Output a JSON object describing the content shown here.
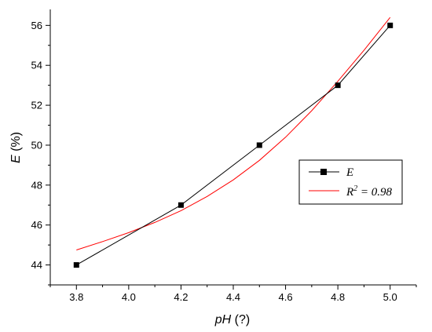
{
  "chart_data": {
    "type": "line",
    "xlabel": {
      "var": "pH",
      "unit": " (?)"
    },
    "ylabel": {
      "var": "E",
      "unit": " (%)"
    },
    "xlim": [
      3.7,
      5.1
    ],
    "ylim": [
      43,
      56.8
    ],
    "xticks": [
      "3.8",
      "4.0",
      "4.2",
      "4.4",
      "4.6",
      "4.8",
      "5.0"
    ],
    "yticks": [
      "44",
      "46",
      "48",
      "50",
      "52",
      "54",
      "56"
    ],
    "grid": false,
    "legend_position": "right-center",
    "colors": {
      "data": "#000000",
      "fit": "#ff0000"
    },
    "series": [
      {
        "name": "E",
        "style": "line-with-square-markers",
        "x": [
          3.8,
          4.2,
          4.5,
          4.8,
          5.0
        ],
        "y": [
          44,
          47,
          50,
          53,
          56
        ]
      },
      {
        "name": "R² = 0.98",
        "style": "fit-curve",
        "x": [
          3.8,
          3.9,
          4.0,
          4.1,
          4.2,
          4.3,
          4.4,
          4.5,
          4.6,
          4.7,
          4.8,
          4.9,
          5.0
        ],
        "y": [
          44.75,
          45.17,
          45.62,
          46.13,
          46.72,
          47.43,
          48.26,
          49.24,
          50.4,
          51.73,
          53.2,
          54.75,
          56.4
        ]
      }
    ],
    "legend": {
      "data_label": "E",
      "fit_label_prefix": "R",
      "fit_label_sup": "2",
      "fit_label_suffix": " = 0.98"
    }
  }
}
